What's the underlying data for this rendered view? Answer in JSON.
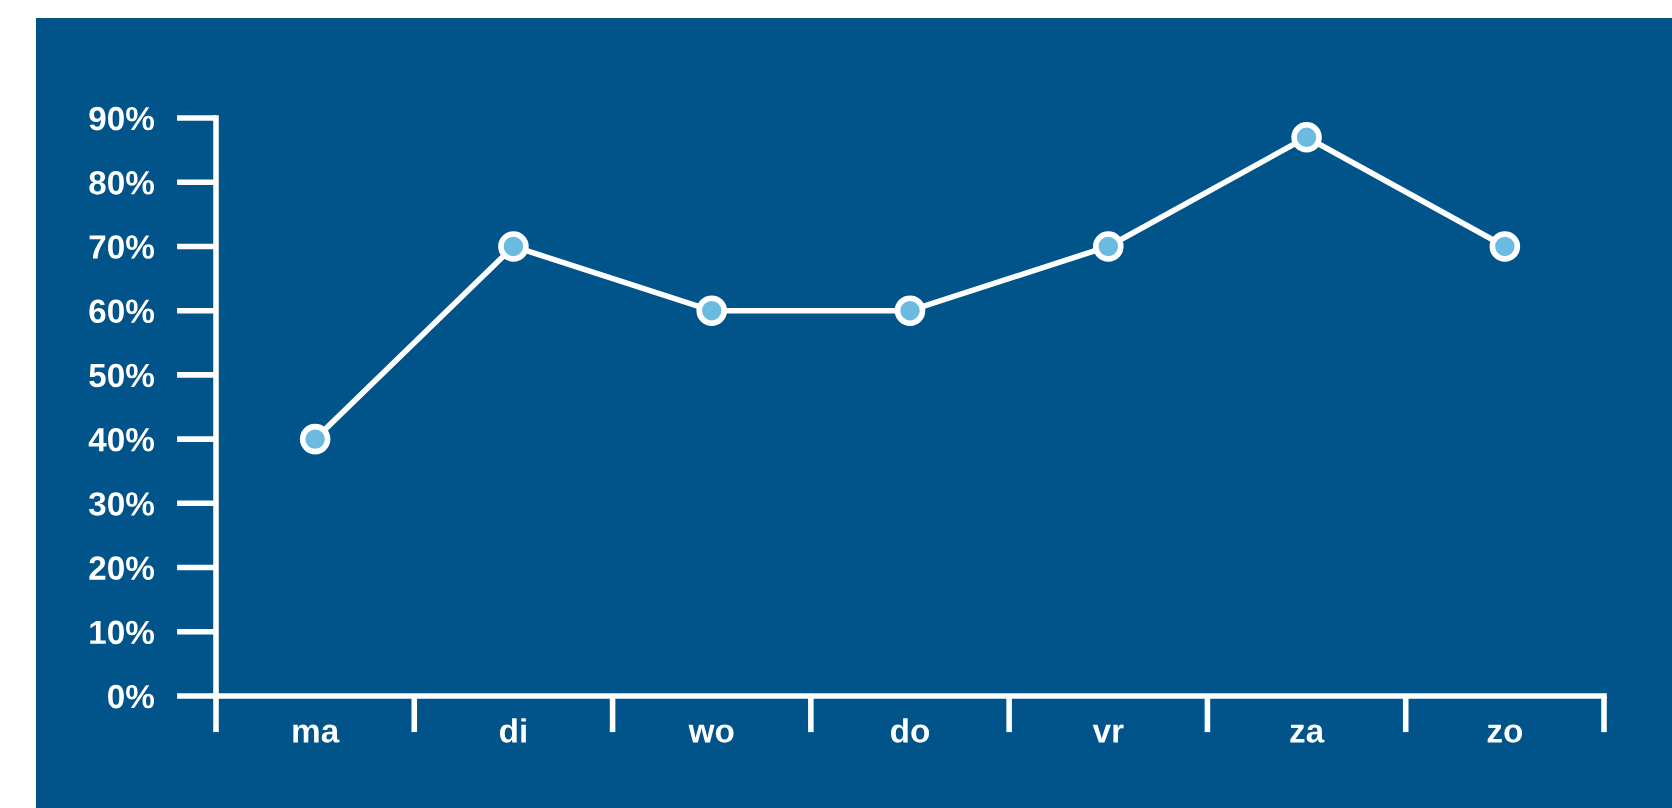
{
  "chart_data": {
    "type": "line",
    "categories": [
      "ma",
      "di",
      "wo",
      "do",
      "vr",
      "za",
      "zo"
    ],
    "series": [
      {
        "color": "#ffffff",
        "values": [
          40,
          70,
          60,
          60,
          70,
          87,
          70
        ]
      }
    ],
    "ylim": [
      0,
      90
    ],
    "yticks": [
      {
        "value": 0,
        "label": "0%"
      },
      {
        "value": 10,
        "label": "10%"
      },
      {
        "value": 20,
        "label": "20%"
      },
      {
        "value": 30,
        "label": "30%"
      },
      {
        "value": 40,
        "label": "40%"
      },
      {
        "value": 50,
        "label": "50%"
      },
      {
        "value": 60,
        "label": "60%"
      },
      {
        "value": 70,
        "label": "70%"
      },
      {
        "value": 80,
        "label": "80%"
      },
      {
        "value": 90,
        "label": "90%"
      }
    ],
    "marker": "circle",
    "line_style": "solid"
  }
}
